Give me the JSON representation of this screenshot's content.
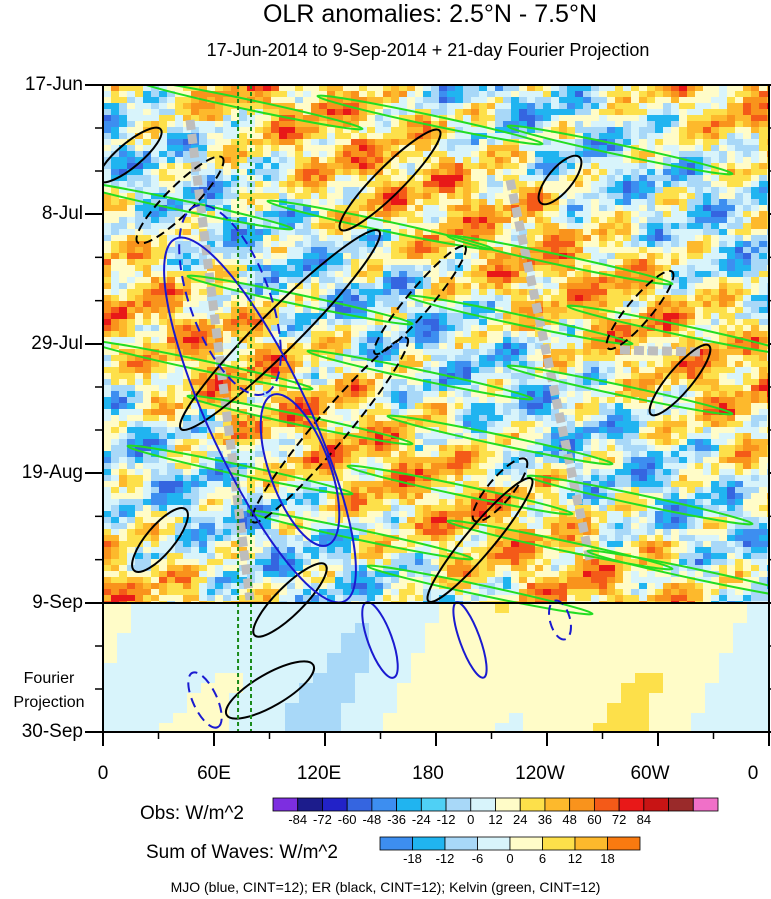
{
  "title": "OLR anomalies: 2.5°N - 7.5°N",
  "subtitle": "17-Jun-2014 to 9-Sep-2014 + 21-day Fourier Projection",
  "fourier_label_1": "Fourier",
  "fourier_label_2": "Projection",
  "footer": "MJO (blue, CINT=12); ER (black, CINT=12); Kelvin (green, CINT=12)",
  "obs_bar": {
    "title": "Obs: W/m^2",
    "ticks": [
      "-84",
      "-72",
      "-60",
      "-48",
      "-36",
      "-24",
      "-12",
      "0",
      "12",
      "24",
      "36",
      "48",
      "60",
      "72",
      "84"
    ],
    "colors": [
      "#7d2ee0",
      "#1c1c8c",
      "#2222c8",
      "#3565e0",
      "#3d8ef0",
      "#20b4f0",
      "#4fd0f5",
      "#a8d8f8",
      "#d8f4fb",
      "#fffcc8",
      "#fde04a",
      "#fdb92c",
      "#f9931c",
      "#f45a18",
      "#e81818",
      "#c81414",
      "#9a2a2a",
      "#f070c8"
    ]
  },
  "sow_bar": {
    "title": "Sum of Waves: W/m^2",
    "ticks": [
      "-18",
      "-12",
      "-6",
      "0",
      "6",
      "12",
      "18"
    ],
    "colors": [
      "#3d8ef0",
      "#20b4f0",
      "#a8d8f8",
      "#d8f4fb",
      "#fffcc8",
      "#fde04a",
      "#fdb92c",
      "#f97a10"
    ]
  },
  "chart_data": {
    "type": "heatmap",
    "title": "OLR anomalies: 2.5°N - 7.5°N",
    "subtitle": "17-Jun-2014 to 9-Sep-2014 + 21-day Fourier Projection",
    "x_axis": {
      "ticks": [
        "0",
        "60E",
        "120E",
        "180",
        "120W",
        "60W",
        "0"
      ],
      "values": [
        0,
        60,
        120,
        180,
        240,
        300,
        360
      ],
      "range": [
        0,
        360
      ]
    },
    "y_axis": {
      "ticks": [
        "17-Jun",
        "8-Jul",
        "29-Jul",
        "19-Aug",
        "9-Sep",
        "30-Sep"
      ],
      "range": [
        "17-Jun-2014",
        "30-Sep-2014"
      ],
      "observed_end": "9-Sep-2014"
    },
    "fourier_region": [
      "9-Sep-2014",
      "30-Sep-2014"
    ],
    "reference_lines": [
      {
        "type": "vertical",
        "lon": 73,
        "style": "dashed",
        "color": "#1a8a1a"
      },
      {
        "type": "vertical",
        "lon": 80,
        "style": "dashed",
        "color": "#1a8a1a"
      },
      {
        "type": "horizontal",
        "date": "9-Sep-2014",
        "style": "solid",
        "color": "#000000"
      }
    ],
    "contours": [
      {
        "name": "MJO",
        "color": "#1a1ad0",
        "cint": 12
      },
      {
        "name": "ER",
        "color": "#000000",
        "cint": 12
      },
      {
        "name": "Kelvin",
        "color": "#22dd22",
        "cint": 12
      }
    ]
  }
}
